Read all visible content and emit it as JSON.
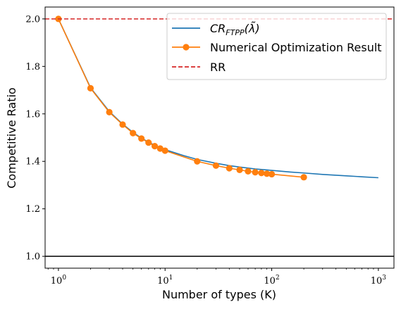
{
  "chart_data": {
    "type": "line",
    "xlabel": "Number of types (K)",
    "ylabel": "Competitive Ratio",
    "xscale": "log",
    "xlim": [
      0.75,
      1400
    ],
    "ylim": [
      0.95,
      2.05
    ],
    "xticks": [
      {
        "value": 1,
        "base": "10",
        "exp": "0"
      },
      {
        "value": 10,
        "base": "10",
        "exp": "1"
      },
      {
        "value": 100,
        "base": "10",
        "exp": "2"
      },
      {
        "value": 1000,
        "base": "10",
        "exp": "3"
      }
    ],
    "yticks": [
      {
        "value": 1.0,
        "label": "1.0"
      },
      {
        "value": 1.2,
        "label": "1.2"
      },
      {
        "value": 1.4,
        "label": "1.4"
      },
      {
        "value": 1.6,
        "label": "1.6"
      },
      {
        "value": 1.8,
        "label": "1.8"
      },
      {
        "value": 2.0,
        "label": "2.0"
      }
    ],
    "grid": false,
    "legend_position": "top-right",
    "series": [
      {
        "name": "CR_FTPP(λ̃)",
        "name_parts": {
          "main": "CR",
          "sub": "FTPP",
          "arg": "(λ̃)"
        },
        "kind": "line",
        "color": "#1f77b4",
        "x": [
          1,
          2,
          3,
          4,
          5,
          6,
          7,
          8,
          9,
          10,
          15,
          20,
          30,
          40,
          50,
          70,
          100,
          150,
          200,
          300,
          500,
          700,
          1000
        ],
        "y": [
          2.0,
          1.71,
          1.61,
          1.557,
          1.522,
          1.498,
          1.481,
          1.468,
          1.457,
          1.449,
          1.424,
          1.408,
          1.392,
          1.382,
          1.376,
          1.368,
          1.362,
          1.355,
          1.351,
          1.345,
          1.339,
          1.335,
          1.331
        ]
      },
      {
        "name": "Numerical Optimization Result",
        "kind": "line-marker",
        "color": "#ff7f0e",
        "x": [
          1,
          2,
          3,
          4,
          5,
          6,
          7,
          8,
          9,
          10,
          20,
          30,
          40,
          50,
          60,
          70,
          80,
          90,
          100,
          200
        ],
        "y": [
          2.0,
          1.708,
          1.607,
          1.555,
          1.519,
          1.496,
          1.479,
          1.464,
          1.454,
          1.445,
          1.4,
          1.382,
          1.371,
          1.364,
          1.358,
          1.354,
          1.351,
          1.348,
          1.346,
          1.333
        ]
      },
      {
        "name": "RR",
        "kind": "hline-dashed",
        "color": "#d62728",
        "y": 2.0
      }
    ],
    "reference_lines": [
      {
        "y": 1.0,
        "color": "#000000"
      }
    ]
  }
}
